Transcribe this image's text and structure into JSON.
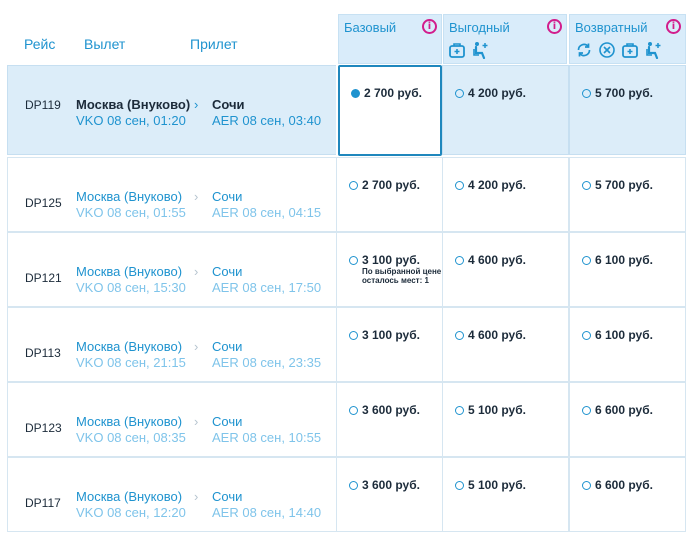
{
  "headers": {
    "flight": "Рейс",
    "departure": "Вылет",
    "arrival": "Прилет"
  },
  "fares": [
    {
      "name": "Базовый",
      "info": "i",
      "features": []
    },
    {
      "name": "Выгодный",
      "info": "i",
      "features": [
        "luggage-icon",
        "seat-selection-icon"
      ]
    },
    {
      "name": "Возвратный",
      "info": "i",
      "features": [
        "exchange-icon",
        "refund-icon",
        "luggage-icon",
        "seat-selection-icon"
      ]
    }
  ],
  "separator": "›",
  "colors": {
    "accent": "#1f93cf",
    "info": "#d21d8c",
    "selected_row": "#dcedf9"
  },
  "flights": [
    {
      "number": "DP119",
      "dep_city": "Москва (Внуково)",
      "dep_time": "VKO 08 сен, 01:20",
      "arr_city": "Сочи",
      "arr_time": "AER 08 сен, 03:40",
      "prices": [
        "2 700 руб.",
        "4 200 руб.",
        "5 700 руб."
      ],
      "note": ""
    },
    {
      "number": "DP125",
      "dep_city": "Москва (Внуково)",
      "dep_time": "VKO 08 сен, 01:55",
      "arr_city": "Сочи",
      "arr_time": "AER 08 сен, 04:15",
      "prices": [
        "2 700 руб.",
        "4 200 руб.",
        "5 700 руб."
      ],
      "note": ""
    },
    {
      "number": "DP121",
      "dep_city": "Москва (Внуково)",
      "dep_time": "VKO 08 сен, 15:30",
      "arr_city": "Сочи",
      "arr_time": "AER 08 сен, 17:50",
      "prices": [
        "3 100 руб.",
        "4 600 руб.",
        "6 100 руб."
      ],
      "note": "По выбранной цене осталось мест: 1"
    },
    {
      "number": "DP113",
      "dep_city": "Москва (Внуково)",
      "dep_time": "VKO 08 сен, 21:15",
      "arr_city": "Сочи",
      "arr_time": "AER 08 сен, 23:35",
      "prices": [
        "3 100 руб.",
        "4 600 руб.",
        "6 100 руб."
      ],
      "note": ""
    },
    {
      "number": "DP123",
      "dep_city": "Москва (Внуково)",
      "dep_time": "VKO 08 сен, 08:35",
      "arr_city": "Сочи",
      "arr_time": "AER 08 сен, 10:55",
      "prices": [
        "3 600 руб.",
        "5 100 руб.",
        "6 600 руб."
      ],
      "note": ""
    },
    {
      "number": "DP117",
      "dep_city": "Москва (Внуково)",
      "dep_time": "VKO 08 сен, 12:20",
      "arr_city": "Сочи",
      "arr_time": "AER 08 сен, 14:40",
      "prices": [
        "3 600 руб.",
        "5 100 руб.",
        "6 600 руб."
      ],
      "note": ""
    }
  ]
}
